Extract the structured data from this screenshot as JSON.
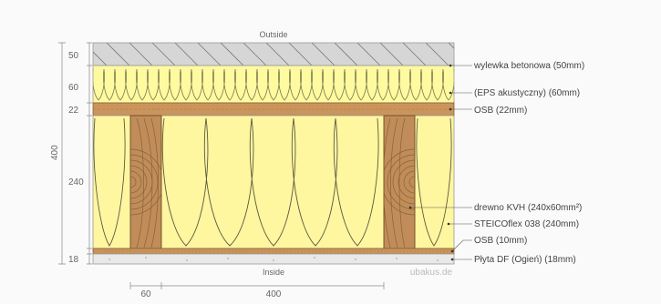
{
  "captions": {
    "outside": "Outside",
    "inside": "Inside",
    "watermark": "ubakus.de"
  },
  "layer_labels": [
    "wylewka betonowa (50mm)",
    "(EPS akustyczny) (60mm)",
    "OSB (22mm)",
    "drewno KVH (240x60mm²)",
    "STEICOflex 038 (240mm)",
    "OSB (10mm)",
    "Płyta DF (Ogień) (18mm)"
  ],
  "thickness_labels": [
    "50",
    "60",
    "22",
    "240",
    "18"
  ],
  "total_label": "400",
  "bottom_dims": [
    "60",
    "400"
  ],
  "colors": {
    "concrete": "#d6d6d6",
    "eps": "#fffaa0",
    "osb": "#c9955c",
    "timber": "#c08d5a",
    "insulation": "#fff6a0",
    "gypsum": "#e9e9e9"
  }
}
